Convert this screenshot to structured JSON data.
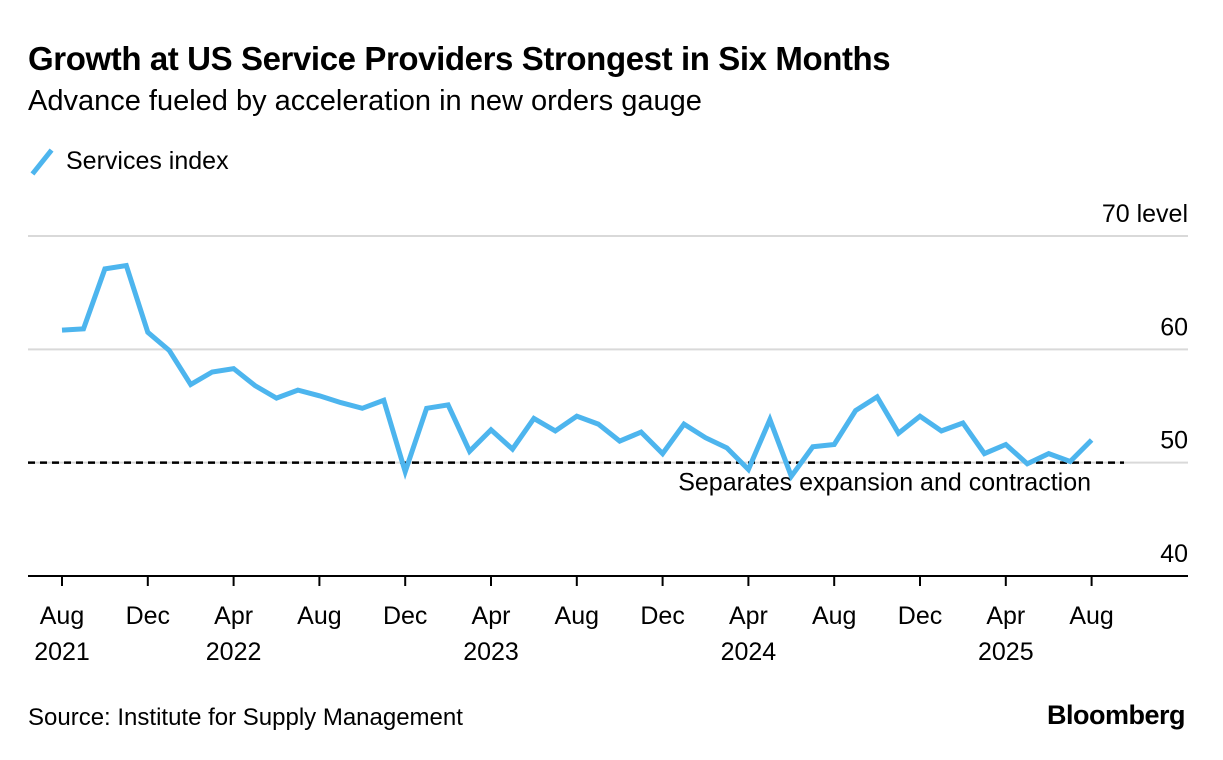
{
  "header": {
    "title": "Growth at US Service Providers Strongest in Six Months",
    "subtitle": "Advance fueled by acceleration in new orders gauge"
  },
  "legend": {
    "label": "Services index",
    "color": "#4DB5EE"
  },
  "footer": {
    "source": "Source: Institute for Supply Management",
    "brand": "Bloomberg"
  },
  "colors": {
    "line": "#4DB5EE",
    "grid": "#d9d9d9",
    "axis": "#000000",
    "reference": "#000000"
  },
  "chart_data": {
    "type": "line",
    "title": "Growth at US Service Providers Strongest in Six Months",
    "subtitle": "Advance fueled by acceleration in new orders gauge",
    "ylim": [
      40,
      70
    ],
    "yticks": [
      40,
      50,
      60,
      70
    ],
    "ytick_labels": [
      "40",
      "50",
      "60",
      "70 level"
    ],
    "y_axis_position": "right",
    "grid": true,
    "x_start": "2021-08",
    "xticks": [
      {
        "index": 0,
        "line1": "Aug",
        "line2": "2021"
      },
      {
        "index": 4,
        "line1": "Dec",
        "line2": ""
      },
      {
        "index": 8,
        "line1": "Apr",
        "line2": "2022"
      },
      {
        "index": 12,
        "line1": "Aug",
        "line2": ""
      },
      {
        "index": 16,
        "line1": "Dec",
        "line2": ""
      },
      {
        "index": 20,
        "line1": "Apr",
        "line2": "2023"
      },
      {
        "index": 24,
        "line1": "Aug",
        "line2": ""
      },
      {
        "index": 28,
        "line1": "Dec",
        "line2": ""
      },
      {
        "index": 32,
        "line1": "Apr",
        "line2": "2024"
      },
      {
        "index": 36,
        "line1": "Aug",
        "line2": ""
      },
      {
        "index": 40,
        "line1": "Dec",
        "line2": ""
      },
      {
        "index": 44,
        "line1": "Apr",
        "line2": "2025"
      },
      {
        "index": 48,
        "line1": "Aug",
        "line2": ""
      }
    ],
    "x_extent_months": 50,
    "series": [
      {
        "name": "Services index",
        "values": [
          61.7,
          61.8,
          67.1,
          67.4,
          61.5,
          59.9,
          56.9,
          58.0,
          58.3,
          56.8,
          55.7,
          56.4,
          55.9,
          55.3,
          54.8,
          55.5,
          49.2,
          54.8,
          55.1,
          51.0,
          52.9,
          51.2,
          53.9,
          52.8,
          54.1,
          53.4,
          51.9,
          52.7,
          50.8,
          53.4,
          52.2,
          51.3,
          49.4,
          53.8,
          48.8,
          51.4,
          51.6,
          54.6,
          55.8,
          52.6,
          54.1,
          52.8,
          53.5,
          50.8,
          51.6,
          49.9,
          50.8,
          50.1,
          52.0
        ]
      }
    ],
    "reference_line": {
      "value": 50,
      "label": "Separates expansion and contraction"
    }
  }
}
